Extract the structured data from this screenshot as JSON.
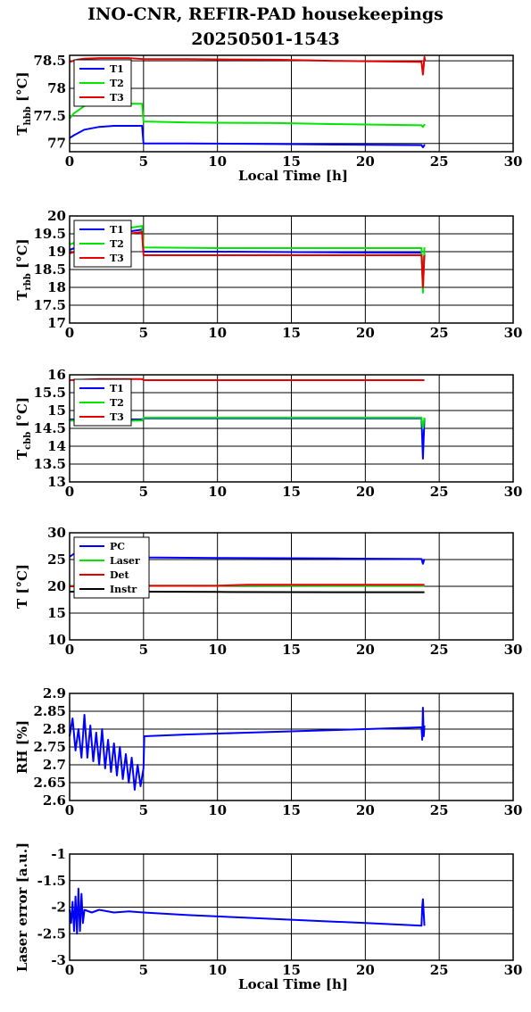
{
  "title": {
    "line1": "INO-CNR, REFIR-PAD housekeepings",
    "line2": "20250501-1543"
  },
  "colors": {
    "blue": "#0000ff",
    "green": "#00e600",
    "red": "#e60000",
    "black": "#000000"
  },
  "chart_data": [
    {
      "type": "line",
      "ylabel_main": "T",
      "ylabel_sub": "hbb",
      "ylabel_unit": " [°C]",
      "xlabel": "Local Time [h]",
      "xlim": [
        0,
        30
      ],
      "ylim": [
        76.85,
        78.6
      ],
      "x_ticks": [
        "0",
        "5",
        "10",
        "15",
        "20",
        "25",
        "30"
      ],
      "y_ticks": [
        {
          "v": 77,
          "label": "77"
        },
        {
          "v": 77.5,
          "label": "77.5"
        },
        {
          "v": 78,
          "label": "78"
        },
        {
          "v": 78.5,
          "label": "78.5"
        }
      ],
      "grid": true,
      "legend": "top-left",
      "series": [
        {
          "name": "T1",
          "color": "blue",
          "x": [
            0,
            0.3,
            1,
            2,
            3,
            4,
            4.9,
            5,
            8,
            14,
            18,
            23.8,
            23.9,
            24,
            24.05
          ],
          "y": [
            77.1,
            77.15,
            77.25,
            77.3,
            77.32,
            77.32,
            77.32,
            77.0,
            77.0,
            76.99,
            76.98,
            76.97,
            76.93,
            76.97,
            76.97
          ]
        },
        {
          "name": "T2",
          "color": "green",
          "x": [
            0,
            0.3,
            1,
            2,
            3,
            4,
            4.9,
            5,
            8,
            14,
            18,
            23.8,
            23.9,
            24,
            24.05
          ],
          "y": [
            77.45,
            77.55,
            77.68,
            77.72,
            77.72,
            77.72,
            77.72,
            77.4,
            77.38,
            77.37,
            77.35,
            77.33,
            77.3,
            77.34,
            77.33
          ]
        },
        {
          "name": "T3",
          "color": "red",
          "x": [
            0,
            0.5,
            1,
            2,
            3,
            4,
            5,
            8,
            14,
            18,
            23.8,
            23.9,
            24,
            24.05
          ],
          "y": [
            78.48,
            78.52,
            78.54,
            78.55,
            78.55,
            78.55,
            78.53,
            78.53,
            78.52,
            78.5,
            78.48,
            78.25,
            78.57,
            78.5
          ]
        }
      ]
    },
    {
      "type": "line",
      "ylabel_main": "T",
      "ylabel_sub": "rbb",
      "ylabel_unit": " [°C]",
      "xlabel": "",
      "xlim": [
        0,
        30
      ],
      "ylim": [
        17,
        20
      ],
      "x_ticks": [
        "0",
        "5",
        "10",
        "15",
        "20",
        "25",
        "30"
      ],
      "y_ticks": [
        {
          "v": 17,
          "label": "17"
        },
        {
          "v": 17.5,
          "label": "17.5"
        },
        {
          "v": 18,
          "label": "18"
        },
        {
          "v": 18.5,
          "label": "18.5"
        },
        {
          "v": 19,
          "label": "19"
        },
        {
          "v": 19.5,
          "label": "19.5"
        },
        {
          "v": 20,
          "label": "20"
        }
      ],
      "grid": true,
      "legend": "top-left",
      "series": [
        {
          "name": "T1",
          "color": "blue",
          "x": [
            0,
            1,
            3,
            4.9,
            5,
            10,
            18,
            23.8,
            23.9,
            24
          ],
          "y": [
            19.05,
            19.2,
            19.5,
            19.62,
            19.0,
            19.0,
            18.98,
            18.97,
            18.3,
            18.95
          ]
        },
        {
          "name": "T2",
          "color": "green",
          "x": [
            0,
            1,
            3,
            4.9,
            5,
            10,
            18,
            23.8,
            23.9,
            24
          ],
          "y": [
            19.2,
            19.35,
            19.6,
            19.72,
            19.12,
            19.1,
            19.1,
            19.1,
            17.85,
            19.12
          ]
        },
        {
          "name": "T3",
          "color": "red",
          "x": [
            0,
            1,
            3,
            4.9,
            5,
            10,
            18,
            23.8,
            23.9,
            24
          ],
          "y": [
            18.95,
            19.1,
            19.45,
            19.55,
            18.9,
            18.9,
            18.9,
            18.9,
            18.0,
            18.9
          ]
        }
      ]
    },
    {
      "type": "line",
      "ylabel_main": "T",
      "ylabel_sub": "cbb",
      "ylabel_unit": " [°C]",
      "xlabel": "",
      "xlim": [
        0,
        30
      ],
      "ylim": [
        13,
        16
      ],
      "x_ticks": [
        "0",
        "5",
        "10",
        "15",
        "20",
        "25",
        "30"
      ],
      "y_ticks": [
        {
          "v": 13,
          "label": "13"
        },
        {
          "v": 13.5,
          "label": "13.5"
        },
        {
          "v": 14,
          "label": "14"
        },
        {
          "v": 14.5,
          "label": "14.5"
        },
        {
          "v": 15,
          "label": "15"
        },
        {
          "v": 15.5,
          "label": "15.5"
        },
        {
          "v": 16,
          "label": "16"
        }
      ],
      "grid": true,
      "legend": "top-left",
      "series": [
        {
          "name": "T1",
          "color": "blue",
          "x": [
            0,
            2,
            4.9,
            5,
            12,
            18,
            23.8,
            23.9,
            24
          ],
          "y": [
            14.75,
            14.75,
            14.75,
            14.78,
            14.78,
            14.78,
            14.78,
            13.65,
            14.78
          ]
        },
        {
          "name": "T2",
          "color": "green",
          "x": [
            0,
            2,
            4.9,
            5,
            12,
            18,
            23.8,
            23.9,
            24
          ],
          "y": [
            14.72,
            14.7,
            14.72,
            14.8,
            14.8,
            14.8,
            14.8,
            14.5,
            14.8
          ]
        },
        {
          "name": "T3",
          "color": "red",
          "x": [
            0,
            2,
            4.9,
            5,
            12,
            18,
            23.8,
            24
          ],
          "y": [
            15.85,
            15.88,
            15.88,
            15.85,
            15.85,
            15.85,
            15.85,
            15.85
          ]
        }
      ]
    },
    {
      "type": "line",
      "ylabel_main": "T [°C]",
      "ylabel_sub": "",
      "ylabel_unit": "",
      "xlabel": "",
      "xlim": [
        0,
        30
      ],
      "ylim": [
        10,
        30
      ],
      "x_ticks": [
        "0",
        "5",
        "10",
        "15",
        "20",
        "25",
        "30"
      ],
      "y_ticks": [
        {
          "v": 10,
          "label": "10"
        },
        {
          "v": 15,
          "label": "15"
        },
        {
          "v": 20,
          "label": "20"
        },
        {
          "v": 25,
          "label": "25"
        },
        {
          "v": 30,
          "label": "30"
        }
      ],
      "grid": true,
      "legend": "top-left",
      "series": [
        {
          "name": "PC",
          "color": "blue",
          "x": [
            0,
            0.5,
            1,
            3,
            5,
            10,
            18,
            23.8,
            23.9,
            24
          ],
          "y": [
            25.5,
            26.5,
            26.0,
            25.8,
            25.4,
            25.3,
            25.2,
            25.1,
            24.2,
            25.1
          ]
        },
        {
          "name": "Laser",
          "color": "green",
          "x": [
            0,
            1,
            3,
            5,
            10,
            12,
            18,
            23.8,
            24
          ],
          "y": [
            20.1,
            20.05,
            20.1,
            20.1,
            20.1,
            20.15,
            20.1,
            20.1,
            20.1
          ]
        },
        {
          "name": "Det",
          "color": "red",
          "x": [
            0,
            1,
            3,
            5,
            10,
            12,
            18,
            23.8,
            24
          ],
          "y": [
            20.0,
            20.0,
            20.05,
            20.1,
            20.1,
            20.3,
            20.3,
            20.3,
            20.3
          ]
        },
        {
          "name": "Instr",
          "color": "black",
          "x": [
            0,
            1,
            3,
            5,
            10,
            18,
            23.8,
            24
          ],
          "y": [
            19.0,
            19.0,
            19.0,
            19.0,
            18.95,
            18.9,
            18.9,
            18.9
          ]
        }
      ]
    },
    {
      "type": "line",
      "ylabel_main": "RH [%]",
      "ylabel_sub": "",
      "ylabel_unit": "",
      "xlabel": "",
      "xlim": [
        0,
        30
      ],
      "ylim": [
        2.6,
        2.9
      ],
      "x_ticks": [
        "0",
        "5",
        "10",
        "15",
        "20",
        "25",
        "30"
      ],
      "y_ticks": [
        {
          "v": 2.6,
          "label": "2.6"
        },
        {
          "v": 2.65,
          "label": "2.65"
        },
        {
          "v": 2.7,
          "label": "2.7"
        },
        {
          "v": 2.75,
          "label": "2.75"
        },
        {
          "v": 2.8,
          "label": "2.8"
        },
        {
          "v": 2.85,
          "label": "2.85"
        },
        {
          "v": 2.9,
          "label": "2.9"
        }
      ],
      "grid": true,
      "legend": "none",
      "series": [
        {
          "name": "",
          "color": "blue",
          "x": [
            0,
            0.2,
            0.4,
            0.6,
            0.8,
            1.0,
            1.2,
            1.4,
            1.6,
            1.8,
            2.0,
            2.2,
            2.4,
            2.6,
            2.8,
            3.0,
            3.2,
            3.4,
            3.6,
            3.8,
            4.0,
            4.2,
            4.4,
            4.6,
            4.8,
            5.0,
            5.05,
            8,
            12,
            16,
            20,
            23.8,
            23.85,
            23.9,
            23.95,
            24
          ],
          "y": [
            2.78,
            2.83,
            2.74,
            2.8,
            2.72,
            2.84,
            2.72,
            2.81,
            2.71,
            2.79,
            2.7,
            2.8,
            2.69,
            2.77,
            2.68,
            2.76,
            2.67,
            2.75,
            2.66,
            2.73,
            2.65,
            2.72,
            2.63,
            2.7,
            2.64,
            2.69,
            2.78,
            2.785,
            2.79,
            2.795,
            2.8,
            2.805,
            2.77,
            2.86,
            2.78,
            2.81
          ]
        }
      ]
    },
    {
      "type": "line",
      "ylabel_main": "Laser error [a.u.]",
      "ylabel_sub": "",
      "ylabel_unit": "",
      "xlabel": "Local Time [h]",
      "xlim": [
        0,
        30
      ],
      "ylim": [
        -3,
        -1
      ],
      "x_ticks": [
        "0",
        "5",
        "10",
        "15",
        "20",
        "25",
        "30"
      ],
      "y_ticks": [
        {
          "v": -3,
          "label": "-3"
        },
        {
          "v": -2.5,
          "label": "-2.5"
        },
        {
          "v": -2,
          "label": "-2"
        },
        {
          "v": -1.5,
          "label": "-1.5"
        },
        {
          "v": -1,
          "label": "-1"
        }
      ],
      "grid": true,
      "legend": "none",
      "series": [
        {
          "name": "",
          "color": "blue",
          "x": [
            0,
            0.1,
            0.2,
            0.3,
            0.4,
            0.5,
            0.6,
            0.7,
            0.8,
            0.9,
            1.0,
            1.5,
            2,
            3,
            4,
            5,
            8,
            12,
            16,
            20,
            23.8,
            23.85,
            23.9,
            24
          ],
          "y": [
            -2.05,
            -2.3,
            -1.9,
            -2.45,
            -1.8,
            -2.5,
            -1.65,
            -2.45,
            -1.75,
            -2.3,
            -2.05,
            -2.1,
            -2.05,
            -2.1,
            -2.08,
            -2.1,
            -2.15,
            -2.2,
            -2.25,
            -2.3,
            -2.35,
            -2.0,
            -1.85,
            -2.35
          ]
        }
      ]
    }
  ]
}
